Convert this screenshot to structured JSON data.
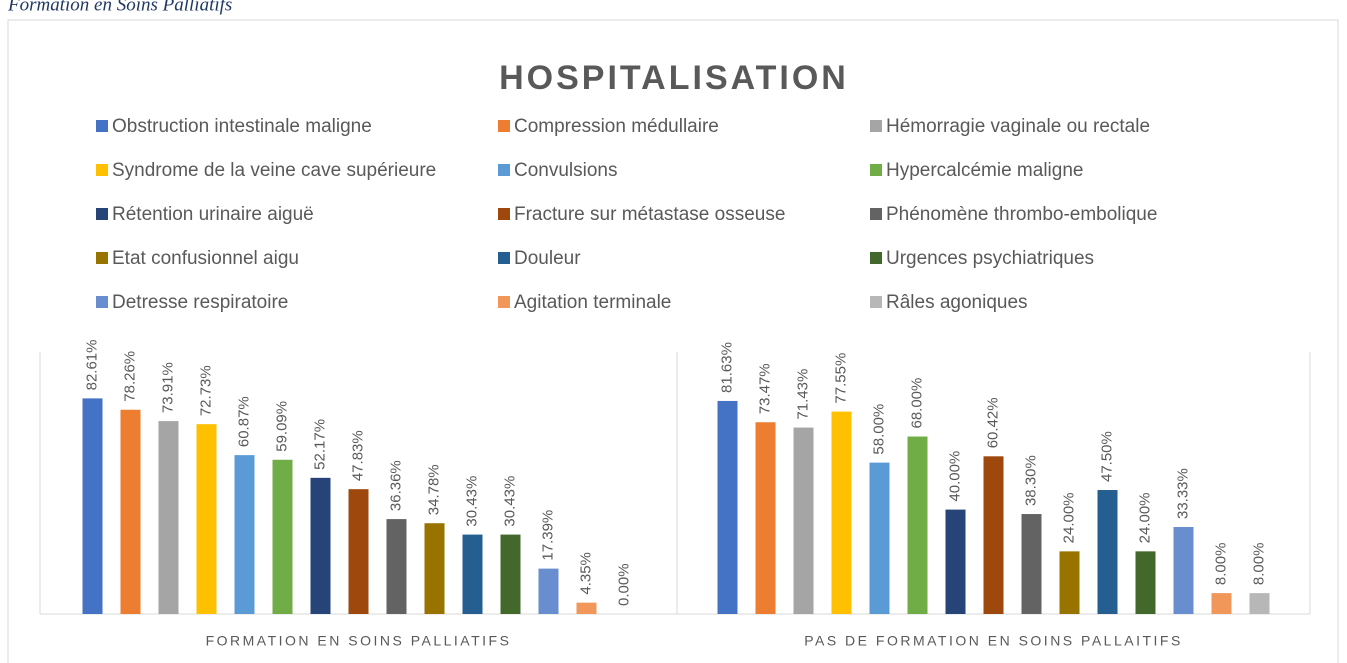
{
  "caption": "Formation en Soins Palliatifs",
  "chart_data": {
    "type": "bar",
    "title": "HOSPITALISATION",
    "categories": [
      "FORMATION EN SOINS PALLIATIFS",
      "PAS DE FORMATION EN SOINS PALLAITIFS"
    ],
    "ylim": [
      0,
      100
    ],
    "series": [
      {
        "name": "Obstruction intestinale maligne",
        "color": "#4472C4",
        "values": [
          82.61,
          81.63
        ],
        "value_labels": [
          "82.61%",
          "81.63%"
        ]
      },
      {
        "name": "Compression médullaire",
        "color": "#ED7D31",
        "values": [
          78.26,
          73.47
        ],
        "value_labels": [
          "78.26%",
          "73.47%"
        ]
      },
      {
        "name": "Hémorragie vaginale ou rectale",
        "color": "#A5A5A5",
        "values": [
          73.91,
          71.43
        ],
        "value_labels": [
          "73.91%",
          "71.43%"
        ]
      },
      {
        "name": "Syndrome de la veine cave supérieure",
        "color": "#FFC000",
        "values": [
          72.73,
          77.55
        ],
        "value_labels": [
          "72.73%",
          "77.55%"
        ]
      },
      {
        "name": "Convulsions",
        "color": "#5B9BD5",
        "values": [
          60.87,
          58.0
        ],
        "value_labels": [
          "60.87%",
          "58.00%"
        ]
      },
      {
        "name": "Hypercalcémie maligne",
        "color": "#70AD47",
        "values": [
          59.09,
          68.0
        ],
        "value_labels": [
          "59.09%",
          "68.00%"
        ]
      },
      {
        "name": "Rétention urinaire aiguë",
        "color": "#264478",
        "values": [
          52.17,
          40.0
        ],
        "value_labels": [
          "52.17%",
          "40.00%"
        ]
      },
      {
        "name": "Fracture sur métastase osseuse",
        "color": "#9E480E",
        "values": [
          47.83,
          60.42
        ],
        "value_labels": [
          "47.83%",
          "60.42%"
        ]
      },
      {
        "name": "Phénomène thrombo-embolique",
        "color": "#636363",
        "values": [
          36.36,
          38.3
        ],
        "value_labels": [
          "36.36%",
          "38.30%"
        ]
      },
      {
        "name": "Etat confusionnel aigu",
        "color": "#997300",
        "values": [
          34.78,
          24.0
        ],
        "value_labels": [
          "34.78%",
          "24.00%"
        ]
      },
      {
        "name": "Douleur",
        "color": "#255E91",
        "values": [
          30.43,
          47.5
        ],
        "value_labels": [
          "30.43%",
          "47.50%"
        ]
      },
      {
        "name": "Urgences psychiatriques",
        "color": "#43682B",
        "values": [
          30.43,
          24.0
        ],
        "value_labels": [
          "30.43%",
          "24.00%"
        ]
      },
      {
        "name": "Detresse respiratoire",
        "color": "#698ED0",
        "values": [
          17.39,
          33.33
        ],
        "value_labels": [
          "17.39%",
          "33.33%"
        ]
      },
      {
        "name": "Agitation terminale",
        "color": "#F1975A",
        "values": [
          4.35,
          8.0
        ],
        "value_labels": [
          "4.35%",
          "8.00%"
        ]
      },
      {
        "name": "Râles agoniques",
        "color": "#B7B7B7",
        "values": [
          0.0,
          8.0
        ],
        "value_labels": [
          "0.00%",
          "8.00%"
        ]
      }
    ]
  }
}
